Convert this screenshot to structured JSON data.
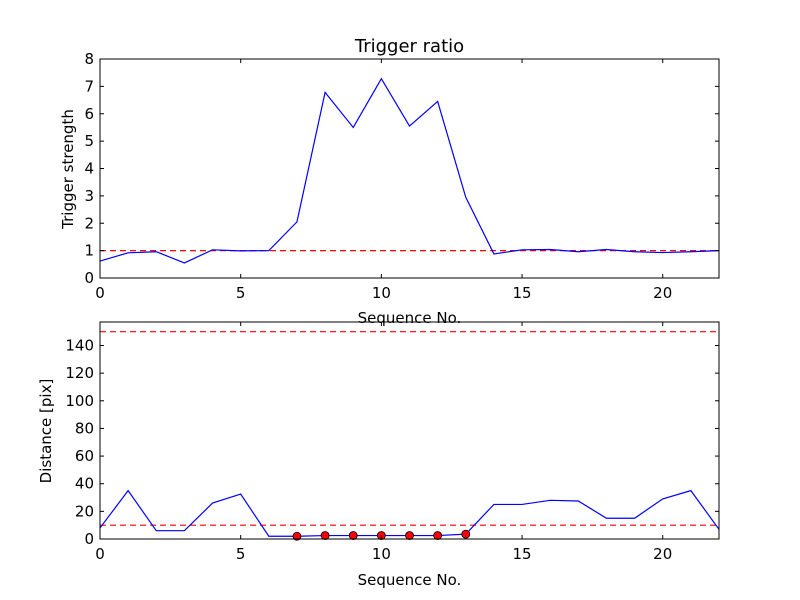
{
  "chart_data": [
    {
      "type": "line",
      "title": "Trigger ratio",
      "xlabel": "Sequence No.",
      "ylabel": "Trigger strength",
      "xlim": [
        0,
        22
      ],
      "ylim": [
        0,
        8
      ],
      "xticks": [
        0,
        5,
        10,
        15,
        20
      ],
      "yticks": [
        0,
        1,
        2,
        3,
        4,
        5,
        6,
        7,
        8
      ],
      "grid": false,
      "series": [
        {
          "color": "#0000ff",
          "x": [
            0,
            1,
            2,
            3,
            4,
            5,
            6,
            7,
            8,
            9,
            10,
            11,
            12,
            13,
            14,
            15,
            16,
            17,
            18,
            19,
            20,
            21,
            22
          ],
          "values": [
            0.62,
            0.92,
            0.96,
            0.55,
            1.03,
            0.99,
            1.0,
            2.05,
            6.78,
            5.5,
            7.28,
            5.55,
            6.45,
            2.95,
            0.88,
            1.03,
            1.04,
            0.96,
            1.04,
            0.96,
            0.93,
            0.96,
            1.0
          ]
        }
      ],
      "reference_lines": [
        {
          "y": 1.0,
          "color": "#ff0000",
          "style": "dashed"
        }
      ]
    },
    {
      "type": "line",
      "title": "",
      "xlabel": "Sequence No.",
      "ylabel": "Distance [pix]",
      "xlim": [
        0,
        22
      ],
      "ylim": [
        0,
        157
      ],
      "xticks": [
        0,
        5,
        10,
        15,
        20
      ],
      "yticks": [
        0,
        20,
        40,
        60,
        80,
        100,
        120,
        140
      ],
      "grid": false,
      "series": [
        {
          "color": "#0000ff",
          "x": [
            0,
            1,
            2,
            3,
            4,
            5,
            6,
            7,
            8,
            9,
            10,
            11,
            12,
            13,
            14,
            15,
            16,
            17,
            18,
            19,
            20,
            21,
            22
          ],
          "values": [
            8,
            35,
            6,
            6,
            26,
            32.5,
            2,
            2,
            2.5,
            2.5,
            2.5,
            2.5,
            2.5,
            3.5,
            25,
            25,
            28,
            27.5,
            15,
            15,
            29,
            35,
            7
          ]
        }
      ],
      "markers": {
        "color": "#ff0000",
        "x": [
          7,
          8,
          9,
          10,
          11,
          12,
          13
        ],
        "values": [
          2,
          2.5,
          2.5,
          2.5,
          2.5,
          2.5,
          3.5
        ]
      },
      "reference_lines": [
        {
          "y": 150,
          "color": "#ff0000",
          "style": "dashed"
        },
        {
          "y": 10,
          "color": "#ff0000",
          "style": "dashed"
        }
      ]
    }
  ]
}
